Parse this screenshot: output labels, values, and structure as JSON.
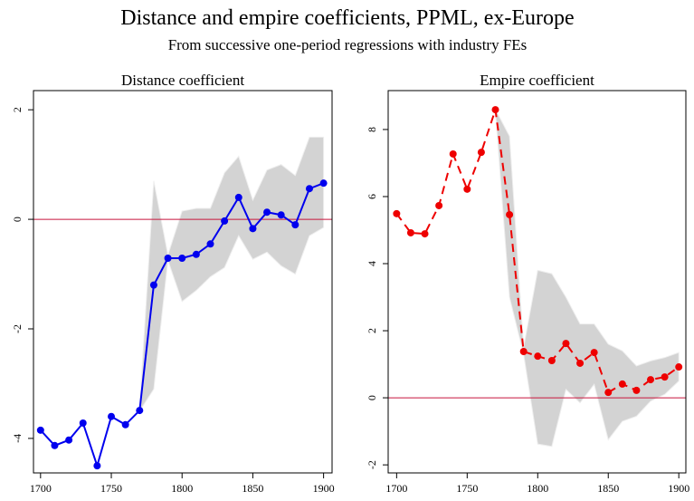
{
  "title": "Distance and empire coefficients, PPML, ex-Europe",
  "subtitle": "From successive one-period regressions with industry FEs",
  "chart_data": [
    {
      "type": "line",
      "title": "Distance coefficient",
      "x": [
        1700,
        1710,
        1720,
        1730,
        1740,
        1750,
        1760,
        1770,
        1780,
        1790,
        1800,
        1810,
        1820,
        1830,
        1840,
        1850,
        1860,
        1870,
        1880,
        1890,
        1900
      ],
      "series": [
        {
          "color": "#0000ee",
          "line_style": "solid",
          "values": [
            -3.85,
            -4.13,
            -4.03,
            -3.72,
            -4.5,
            -3.6,
            -3.75,
            -3.49,
            -1.2,
            -0.71,
            -0.71,
            -0.64,
            -0.45,
            -0.03,
            0.4,
            -0.17,
            0.13,
            0.08,
            -0.1,
            0.56,
            0.66
          ]
        }
      ],
      "band": {
        "color": "#d3d3d3",
        "lower": [
          null,
          null,
          null,
          null,
          null,
          null,
          null,
          -3.5,
          -3.1,
          -0.75,
          -1.5,
          -1.3,
          -1.05,
          -0.88,
          -0.3,
          -0.73,
          -0.6,
          -0.85,
          -1.0,
          -0.3,
          -0.15
        ],
        "upper": [
          null,
          null,
          null,
          null,
          null,
          null,
          null,
          -3.45,
          0.7,
          -0.65,
          0.15,
          0.2,
          0.2,
          0.85,
          1.15,
          0.35,
          0.9,
          1.0,
          0.8,
          1.5,
          1.5
        ]
      },
      "hline": {
        "value": 0,
        "color": "#c8143c"
      },
      "xlim": [
        1695,
        1906
      ],
      "ylim": [
        -4.63,
        2.35
      ],
      "xticks": [
        1700,
        1750,
        1800,
        1850,
        1900
      ],
      "yticks": [
        -4,
        -2,
        0,
        2
      ]
    },
    {
      "type": "line",
      "title": "Empire coefficient",
      "x": [
        1700,
        1710,
        1720,
        1730,
        1740,
        1750,
        1760,
        1770,
        1780,
        1790,
        1800,
        1810,
        1820,
        1830,
        1840,
        1850,
        1860,
        1870,
        1880,
        1890,
        1900
      ],
      "series": [
        {
          "color": "#ee0000",
          "line_style": "dashed",
          "values": [
            5.49,
            4.92,
            4.89,
            5.73,
            7.27,
            6.22,
            7.32,
            8.59,
            5.46,
            1.38,
            1.24,
            1.11,
            1.62,
            1.03,
            1.35,
            0.16,
            0.41,
            0.22,
            0.54,
            0.62,
            0.92
          ]
        }
      ],
      "band": {
        "color": "#d3d3d3",
        "lower": [
          null,
          null,
          null,
          null,
          null,
          null,
          null,
          8.55,
          3.0,
          1.3,
          -1.38,
          -1.45,
          0.25,
          -0.15,
          0.4,
          -1.25,
          -0.7,
          -0.55,
          -0.1,
          0.1,
          0.5
        ],
        "upper": [
          null,
          null,
          null,
          null,
          null,
          null,
          null,
          8.6,
          7.8,
          1.5,
          3.8,
          3.7,
          3.0,
          2.2,
          2.2,
          1.6,
          1.4,
          0.95,
          1.1,
          1.2,
          1.35
        ]
      },
      "hline": {
        "value": 0,
        "color": "#c8143c"
      },
      "xlim": [
        1694,
        1905
      ],
      "ylim": [
        -2.24,
        9.16
      ],
      "xticks": [
        1700,
        1750,
        1800,
        1850,
        1900
      ],
      "yticks": [
        -2,
        0,
        2,
        4,
        6,
        8
      ]
    }
  ]
}
